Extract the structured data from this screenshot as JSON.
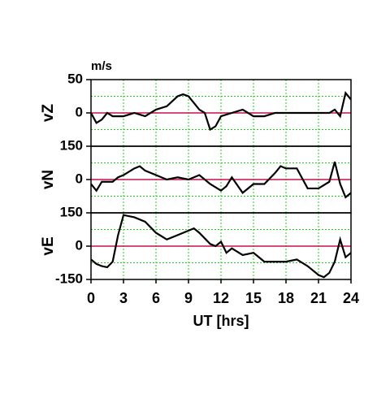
{
  "chart_data": {
    "type": "line",
    "unit": "m/s",
    "x_label": "UT [hrs]",
    "xlim": [
      0,
      24
    ],
    "xticks": [
      0,
      3,
      6,
      9,
      12,
      15,
      18,
      21,
      24
    ],
    "grid": true,
    "zero_color": "#c8104a",
    "grid_color": "#22cc22",
    "panels": [
      {
        "y_label": "vZ",
        "ylim": [
          -50,
          50
        ],
        "yticks": [
          0,
          50
        ],
        "color": "#000000",
        "x": [
          0,
          0.5,
          1,
          1.5,
          2,
          3,
          4,
          5,
          6,
          7,
          8,
          8.5,
          9,
          10,
          10.5,
          11,
          11.5,
          12,
          13,
          14,
          15,
          16,
          17,
          18,
          19,
          20,
          21,
          22,
          22.5,
          23,
          23.5,
          24
        ],
        "values": [
          0,
          -15,
          -10,
          0,
          -5,
          -5,
          0,
          -5,
          5,
          10,
          25,
          28,
          25,
          5,
          0,
          -25,
          -20,
          -5,
          0,
          5,
          -5,
          -5,
          0,
          0,
          0,
          0,
          0,
          0,
          5,
          -5,
          30,
          20
        ]
      },
      {
        "y_label": "vN",
        "ylim": [
          -150,
          150
        ],
        "yticks": [
          0,
          150
        ],
        "color": "#000000",
        "x": [
          0,
          0.5,
          1,
          2,
          2.5,
          3,
          4,
          4.5,
          5,
          6,
          7,
          8,
          9,
          10,
          11,
          12,
          12.5,
          13,
          14,
          15,
          16,
          17,
          17.5,
          18,
          19,
          20,
          21,
          22,
          22.5,
          23,
          23.5,
          24
        ],
        "values": [
          -20,
          -50,
          -10,
          -10,
          10,
          20,
          50,
          60,
          40,
          20,
          0,
          10,
          0,
          20,
          -20,
          -50,
          -30,
          10,
          -60,
          -20,
          -20,
          30,
          60,
          50,
          50,
          -40,
          -40,
          -10,
          80,
          -20,
          -80,
          -60
        ]
      },
      {
        "y_label": "vE",
        "ylim": [
          -150,
          150
        ],
        "yticks": [
          -150,
          0,
          150
        ],
        "color": "#000000",
        "x": [
          0,
          0.5,
          1,
          1.5,
          2,
          2.5,
          3,
          4,
          5,
          6,
          7,
          8,
          9,
          9.5,
          10,
          11,
          11.5,
          12,
          12.5,
          13,
          14,
          15,
          16,
          17,
          18,
          19,
          20,
          21,
          21.5,
          22,
          22.5,
          23,
          23.5,
          24
        ],
        "values": [
          -60,
          -80,
          -90,
          -95,
          -70,
          50,
          140,
          130,
          110,
          60,
          30,
          50,
          70,
          80,
          60,
          10,
          0,
          20,
          -30,
          -10,
          -40,
          -30,
          -70,
          -70,
          -70,
          -60,
          -90,
          -130,
          -140,
          -120,
          -70,
          30,
          -50,
          -30
        ]
      }
    ]
  }
}
